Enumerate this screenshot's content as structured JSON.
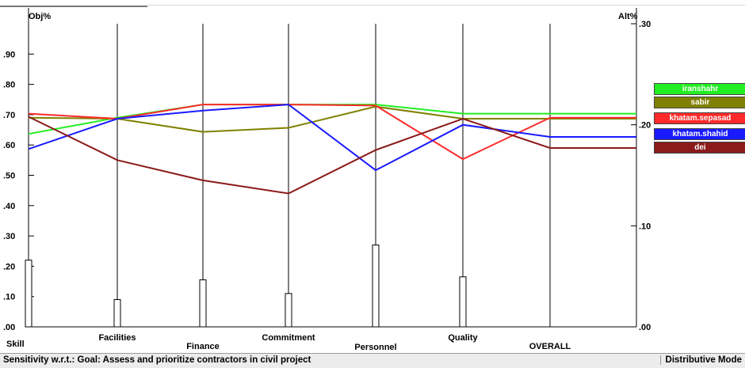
{
  "chart_data": {
    "type": "line",
    "left_axis_label": "Obj%",
    "right_axis_label": "Alt%",
    "left_ticks": [
      ".00",
      ".10",
      ".20",
      ".30",
      ".40",
      ".50",
      ".60",
      ".70",
      ".80",
      ".90"
    ],
    "right_ticks": [
      ".00",
      ".10",
      ".20",
      ".30"
    ],
    "categories": [
      "Skill",
      "Facilities",
      "Finance",
      "Commitment",
      "Personnel",
      "Quality",
      "OVERALL"
    ],
    "bar_values": [
      0.22,
      0.09,
      0.155,
      0.11,
      0.27,
      0.165
    ],
    "right_ylim": [
      0,
      0.3
    ],
    "left_ylim": [
      0,
      1.0
    ],
    "series": [
      {
        "name": "iranshahr",
        "color": "#22ee22",
        "values": [
          0.191,
          0.207,
          0.22,
          0.22,
          0.22,
          0.211,
          0.211
        ]
      },
      {
        "name": "sabir",
        "color": "#808000",
        "values": [
          0.207,
          0.206,
          0.193,
          0.197,
          0.218,
          0.206,
          0.206
        ]
      },
      {
        "name": "khatam.sepasad",
        "color": "#ff2a2a",
        "values": [
          0.211,
          0.206,
          0.22,
          0.22,
          0.219,
          0.166,
          0.207
        ]
      },
      {
        "name": "khatam.shahid",
        "color": "#1a1aff",
        "values": [
          0.176,
          0.206,
          0.214,
          0.22,
          0.155,
          0.2,
          0.188
        ]
      },
      {
        "name": "dei",
        "color": "#8b1a1a",
        "values": [
          0.208,
          0.165,
          0.145,
          0.132,
          0.175,
          0.206,
          0.177
        ]
      }
    ]
  },
  "legend": {
    "items": [
      {
        "label": "iranshahr",
        "color": "#22ee22"
      },
      {
        "label": "sabir",
        "color": "#808000"
      },
      {
        "label": "khatam.sepasad",
        "color": "#ff2a2a"
      },
      {
        "label": "khatam.shahid",
        "color": "#1a1aff"
      },
      {
        "label": "dei",
        "color": "#8b1a1a"
      }
    ]
  },
  "status": {
    "left": "Sensitivity w.r.t.: Goal: Assess and prioritize contractors in civil project",
    "right": "Distributive Mode"
  }
}
